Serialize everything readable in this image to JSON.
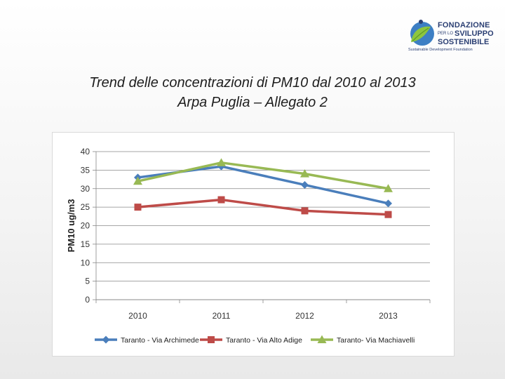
{
  "header": {
    "title_line1": "Trend delle concentrazioni di PM10 dal 2010 al 2013",
    "title_line2": "Arpa Puglia – Allegato 2"
  },
  "logo": {
    "line1": "FONDAZIONE",
    "line2_small": "PER LO",
    "line2": "SVILUPPO",
    "line3": "SOSTENIBILE",
    "subtitle": "Sustainable Development Foundation"
  },
  "colors": {
    "series1": "#4a7ebb",
    "series2": "#be4b48",
    "series3": "#98b954",
    "grid": "#888888"
  },
  "chart_data": {
    "type": "line",
    "title": "",
    "xlabel": "",
    "ylabel": "PM10 ug/m3",
    "categories": [
      "2010",
      "2011",
      "2012",
      "2013"
    ],
    "ylim": [
      0,
      40
    ],
    "yticks": [
      0,
      5,
      10,
      15,
      20,
      25,
      30,
      35,
      40
    ],
    "grid": true,
    "legend_position": "bottom",
    "series": [
      {
        "name": "Taranto - Via Archimede",
        "values": [
          33,
          36,
          31,
          26
        ],
        "marker": "diamond"
      },
      {
        "name": "Taranto - Via Alto Adige",
        "values": [
          25,
          27,
          24,
          23
        ],
        "marker": "square"
      },
      {
        "name": "Taranto- Via Machiavelli",
        "values": [
          32,
          37,
          34,
          30
        ],
        "marker": "triangle"
      }
    ]
  }
}
